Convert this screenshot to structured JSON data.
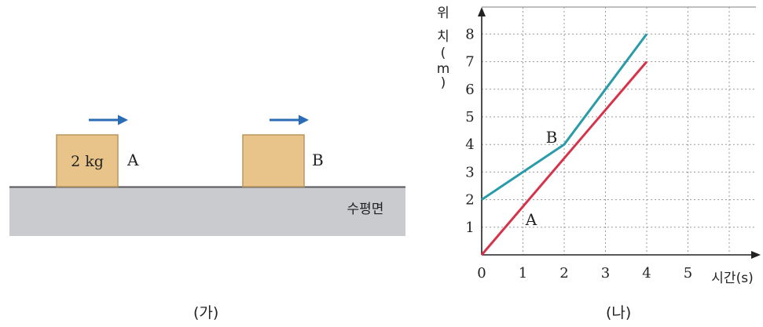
{
  "panel_a": {
    "caption": "(가)",
    "block_a": {
      "mass_label": "2 kg",
      "name": "A"
    },
    "block_b": {
      "name": "B"
    },
    "surface_label": "수평면",
    "colors": {
      "block": "#E8C48A",
      "block_edge": "#B9965C",
      "arrow": "#2A6DB5",
      "ground": "#C9CBCE",
      "ground_top": "#55575A"
    }
  },
  "panel_b": {
    "caption": "(나)",
    "chart_data": {
      "type": "line",
      "ylabel_chars": [
        "위",
        "치",
        "(",
        "m",
        ")"
      ],
      "xlabel": "시간(s)",
      "x_ticks": [
        "0",
        "1",
        "2",
        "3",
        "4",
        "5"
      ],
      "y_ticks": [
        "1",
        "2",
        "3",
        "4",
        "5",
        "6",
        "7",
        "8"
      ],
      "xlim": [
        0,
        6
      ],
      "ylim": [
        0,
        9
      ],
      "grid": true,
      "series": [
        {
          "name": "A",
          "color": "#D6334A",
          "x": [
            0,
            4
          ],
          "y": [
            0,
            7
          ]
        },
        {
          "name": "B",
          "color": "#2A9BAA",
          "x": [
            0,
            1,
            2,
            3,
            4
          ],
          "y": [
            2,
            3,
            4,
            6,
            8
          ]
        }
      ]
    }
  }
}
